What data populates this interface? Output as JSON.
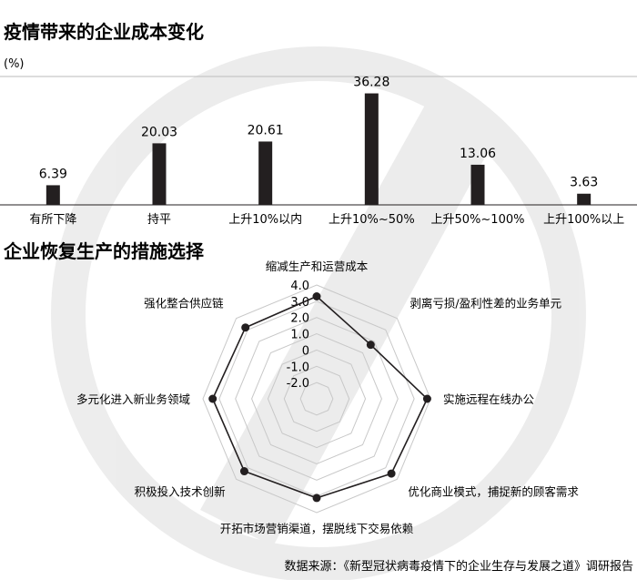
{
  "chart_data": [
    {
      "type": "bar",
      "title": "疫情带来的企业成本变化",
      "unit": "(%)",
      "categories": [
        "有所下降",
        "持平",
        "上升10%以内",
        "上升10%~50%",
        "上升50%~100%",
        "上升100%以上"
      ],
      "values": [
        6.39,
        20.03,
        20.61,
        36.28,
        13.06,
        3.63
      ],
      "value_labels": [
        "6.39",
        "20.03",
        "20.61",
        "36.28",
        "13.06",
        "3.63"
      ],
      "ylim": [
        0,
        40
      ],
      "bar_color": "#231f20"
    },
    {
      "type": "radar",
      "title": "企业恢复生产的措施选择",
      "axes": [
        "缩减生产和运营成本",
        "剥离亏损/盈利性差的业务单元",
        "实施远程在线办公",
        "优化商业模式，捕捉新的顾客需求",
        "开拓市场营销渠道，摆脱线下交易依赖",
        "积极投入技术创新",
        "多元化进入新业务领域",
        "强化整合供应链"
      ],
      "values": [
        3.3,
        1.7,
        3.8,
        3.5,
        3.1,
        3.3,
        3.4,
        3.2
      ],
      "ticks": [
        4.0,
        3.0,
        2.0,
        1.0,
        0,
        -1.0,
        -2.0
      ],
      "tick_labels": [
        "4.0",
        "3.0",
        "2.0",
        "1.0",
        "0",
        "-1.0",
        "-2.0"
      ],
      "range": [
        -3,
        4
      ]
    }
  ],
  "source": "数据来源：《新型冠状病毒疫情下的企业生存与发展之道》调研报告"
}
